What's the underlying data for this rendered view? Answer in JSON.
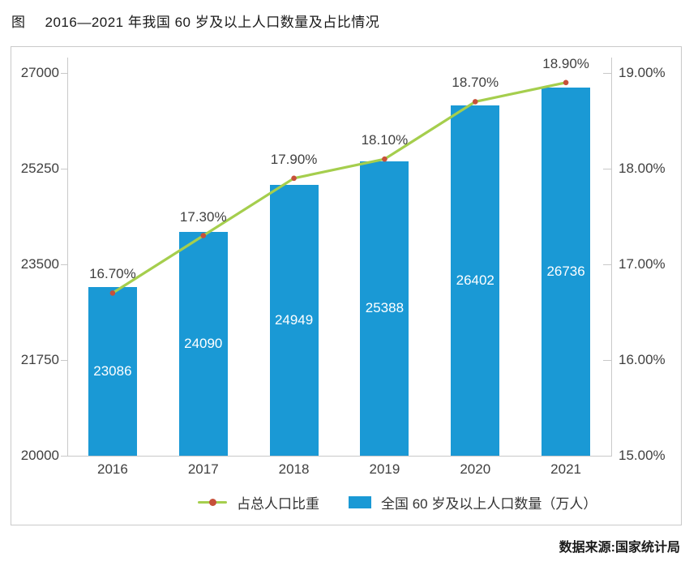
{
  "title": {
    "prefix": "图",
    "text": "2016—2021 年我国 60 岁及以上人口数量及占比情况"
  },
  "source": "数据来源:国家统计局",
  "colors": {
    "bar": "#1a99d5",
    "line": "#a5ce4d",
    "marker": "#c7503a",
    "axis": "#c9c9c9",
    "text": "#404040",
    "bar_label": "#ffffff",
    "border": "#c9c9c9"
  },
  "chart_data": {
    "type": "bar",
    "title": "图 2016—2021 年我国 60 岁及以上人口数量及占比情况",
    "categories": [
      "2016",
      "2017",
      "2018",
      "2019",
      "2020",
      "2021"
    ],
    "series": [
      {
        "name": "全国 60 岁及以上人口数量（万人）",
        "type": "bar",
        "axis": "left",
        "values": [
          23086,
          24090,
          24949,
          25388,
          26402,
          26736
        ],
        "labels": [
          "23086",
          "24090",
          "24949",
          "25388",
          "26402",
          "26736"
        ]
      },
      {
        "name": "占总人口比重",
        "type": "line",
        "axis": "right",
        "values": [
          16.7,
          17.3,
          17.9,
          18.1,
          18.7,
          18.9
        ],
        "labels": [
          "16.70%",
          "17.30%",
          "17.90%",
          "18.10%",
          "18.70%",
          "18.90%"
        ]
      }
    ],
    "left_axis": {
      "min": 20000,
      "max": 27000,
      "ticks": [
        27000,
        25250,
        23500,
        21750,
        20000
      ],
      "tick_labels": [
        "27000",
        "25250",
        "23500",
        "21750",
        "20000"
      ]
    },
    "right_axis": {
      "min": 15,
      "max": 19,
      "ticks": [
        19,
        18,
        17,
        16,
        15
      ],
      "tick_labels": [
        "19.00%",
        "18.00%",
        "17.00%",
        "16.00%",
        "15.00%"
      ]
    },
    "legend": [
      {
        "label": "占总人口比重",
        "type": "line"
      },
      {
        "label": "全国 60 岁及以上人口数量（万人）",
        "type": "bar"
      }
    ],
    "grid": false,
    "legend_position": "bottom"
  }
}
